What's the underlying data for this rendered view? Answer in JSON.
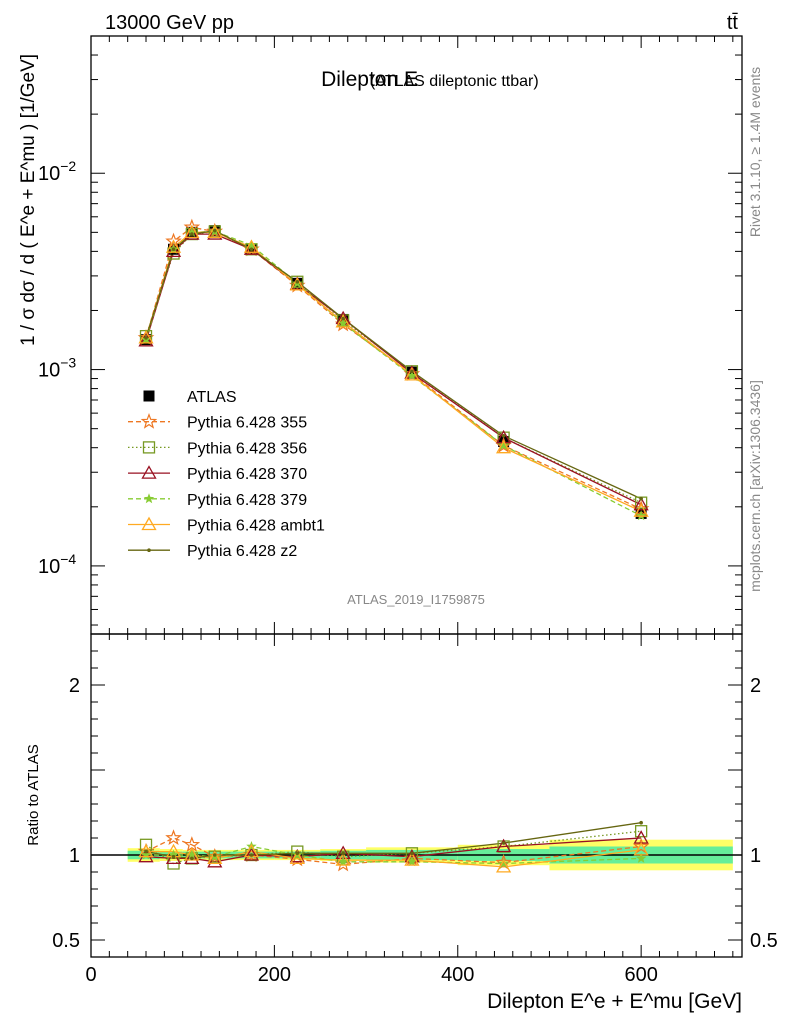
{
  "header": {
    "energy_label": "13000 GeV pp",
    "process_label": "tt̄"
  },
  "side_labels": {
    "rivet": "Rivet 3.1.10, ≥ 1.4M events",
    "mcplots": "mcplots.cern.ch [arXiv:1306.3436]"
  },
  "chart_data": [
    {
      "type": "line",
      "title": "Dilepton E",
      "subtitle": "(ATLAS dileptonic ttbar)",
      "watermark": "ATLAS_2019_I1759875",
      "ylabel": "1 / σ dσ / d ( E^e + E^mu ) [1/GeV]",
      "xlabel": "",
      "yscale": "log",
      "xlim": [
        0,
        710
      ],
      "ylim": [
        4.5e-05,
        0.05
      ],
      "ytick_labels": [
        "10^-4",
        "10^-3",
        "10^-2"
      ],
      "x": [
        60,
        90,
        110,
        135,
        175,
        225,
        275,
        350,
        450,
        600
      ],
      "legend_position": "center-left",
      "series": [
        {
          "name": "ATLAS",
          "color": "#000000",
          "marker": "square",
          "values": [
            0.00142,
            0.0041,
            0.005,
            0.0051,
            0.0041,
            0.00275,
            0.0018,
            0.00097,
            0.00043,
            0.000185
          ]
        },
        {
          "name": "Pythia 6.428 355",
          "color": "#ee7722",
          "marker": "star-open",
          "dash": "dashed",
          "values": [
            0.00145,
            0.0045,
            0.0053,
            0.00505,
            0.0041,
            0.00268,
            0.0017,
            0.00095,
            0.00041,
            0.000195
          ]
        },
        {
          "name": "Pythia 6.428 356",
          "color": "#779922",
          "marker": "square-open",
          "dash": "dotted",
          "values": [
            0.00148,
            0.0039,
            0.0049,
            0.00505,
            0.0041,
            0.0028,
            0.00178,
            0.00098,
            0.00045,
            0.00021
          ]
        },
        {
          "name": "Pythia 6.428 370",
          "color": "#991122",
          "marker": "triangle-open",
          "dash": "solid",
          "values": [
            0.0014,
            0.004,
            0.0049,
            0.0049,
            0.0041,
            0.00272,
            0.00182,
            0.00096,
            0.00045,
            0.000205
          ]
        },
        {
          "name": "Pythia 6.428 379",
          "color": "#88cc33",
          "marker": "star",
          "dash": "dashed",
          "values": [
            0.00142,
            0.0041,
            0.005,
            0.00505,
            0.0043,
            0.00275,
            0.00172,
            0.00093,
            0.00041,
            0.00018
          ]
        },
        {
          "name": "Pythia 6.428 ambt1",
          "color": "#ffaa22",
          "marker": "triangle-open",
          "dash": "solid",
          "values": [
            0.00145,
            0.0042,
            0.005,
            0.005,
            0.0042,
            0.0027,
            0.00175,
            0.00094,
            0.0004,
            0.00019
          ]
        },
        {
          "name": "Pythia 6.428 z2",
          "color": "#666611",
          "marker": "dot",
          "dash": "solid",
          "values": [
            0.00145,
            0.0041,
            0.0049,
            0.0051,
            0.0041,
            0.0028,
            0.00182,
            0.00098,
            0.00046,
            0.00022
          ]
        }
      ]
    },
    {
      "type": "line",
      "title": "",
      "ylabel": "Ratio to ATLAS",
      "xlabel": "Dilepton E^e + E^mu [GeV]",
      "xlim": [
        0,
        710
      ],
      "ylim": [
        0.4,
        2.3
      ],
      "xtick_labels": [
        "0",
        "200",
        "400",
        "600"
      ],
      "ytick_labels": [
        "0.5",
        "1",
        "2"
      ],
      "x": [
        60,
        90,
        110,
        135,
        175,
        225,
        275,
        350,
        450,
        600
      ],
      "reference_line": 1,
      "band_inner_color": "#66ee99",
      "band_outer_color": "#ffff66",
      "series": [
        {
          "name": "Pythia 6.428 355",
          "color": "#ee7722",
          "marker": "star-open",
          "dash": "dashed",
          "values": [
            1.02,
            1.1,
            1.06,
            0.99,
            1.0,
            0.975,
            0.945,
            0.98,
            0.955,
            1.05
          ]
        },
        {
          "name": "Pythia 6.428 356",
          "color": "#779922",
          "marker": "square-open",
          "dash": "dotted",
          "values": [
            1.06,
            0.95,
            0.98,
            0.99,
            1.0,
            1.02,
            0.99,
            1.01,
            1.05,
            1.14
          ]
        },
        {
          "name": "Pythia 6.428 370",
          "color": "#991122",
          "marker": "triangle-open",
          "dash": "solid",
          "values": [
            0.99,
            0.98,
            0.98,
            0.96,
            1.0,
            0.99,
            1.01,
            0.99,
            1.05,
            1.1
          ]
        },
        {
          "name": "Pythia 6.428 379",
          "color": "#88cc33",
          "marker": "star",
          "dash": "dashed",
          "values": [
            1.0,
            1.0,
            1.0,
            0.99,
            1.05,
            1.0,
            0.96,
            0.96,
            0.95,
            0.98
          ]
        },
        {
          "name": "Pythia 6.428 ambt1",
          "color": "#ffaa22",
          "marker": "triangle-open",
          "dash": "solid",
          "values": [
            1.02,
            1.02,
            1.0,
            0.98,
            1.02,
            0.98,
            0.97,
            0.97,
            0.93,
            1.03
          ]
        },
        {
          "name": "Pythia 6.428 z2",
          "color": "#666611",
          "marker": "dot",
          "dash": "solid",
          "values": [
            1.02,
            0.99,
            0.98,
            1.0,
            1.0,
            1.01,
            1.01,
            1.01,
            1.07,
            1.19
          ]
        }
      ]
    }
  ]
}
